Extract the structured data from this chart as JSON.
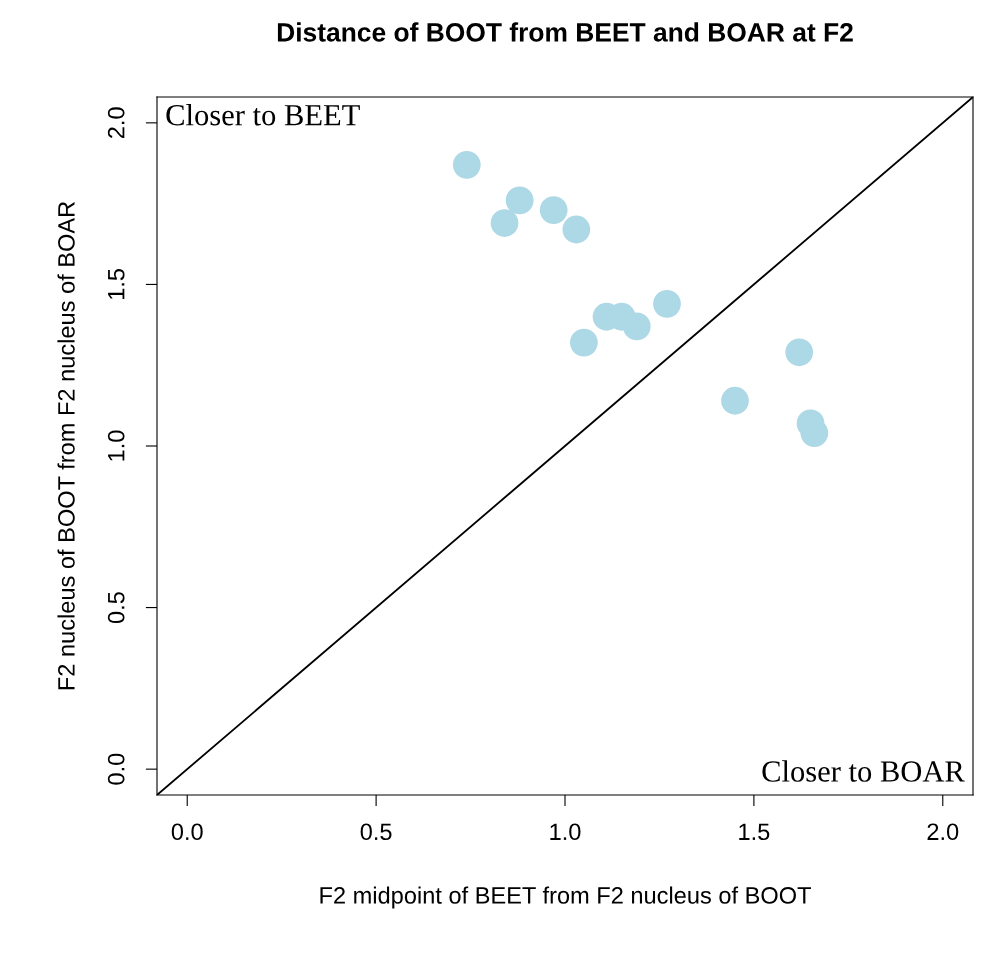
{
  "chart_data": {
    "type": "scatter",
    "title": "Distance of BOOT from BEET and BOAR at F2",
    "xlabel": "F2 midpoint of BEET from F2 nucleus of BOOT",
    "ylabel": "F2 nucleus of BOOT from F2 nucleus of BOAR",
    "annotations": [
      "Closer to BEET",
      "Closer to BOAR"
    ],
    "series": [
      {
        "color": "#add8e6",
        "marker": "circle",
        "x": [
          0.74,
          0.84,
          0.88,
          0.97,
          1.03,
          1.05,
          1.11,
          1.15,
          1.19,
          1.27,
          1.45,
          1.62,
          1.65,
          1.66
        ],
        "values": [
          1.87,
          1.69,
          1.76,
          1.73,
          1.67,
          1.32,
          1.4,
          1.4,
          1.37,
          1.44,
          1.14,
          1.29,
          1.07,
          1.04
        ]
      },
      {
        "type": "line",
        "color": "#000000",
        "x": [
          -0.08,
          2.08
        ],
        "values": [
          -0.08,
          2.08
        ]
      }
    ],
    "xlim": [
      -0.08,
      2.08
    ],
    "ylim": [
      -0.08,
      2.08
    ],
    "xticks": [
      {
        "value": 0,
        "label": "0.0"
      },
      {
        "value": 0.5,
        "label": "0.5"
      },
      {
        "value": 1,
        "label": "1.0"
      },
      {
        "value": 1.5,
        "label": "1.5"
      },
      {
        "value": 2,
        "label": "2.0"
      }
    ],
    "yticks": [
      {
        "value": 0,
        "label": "0.0"
      },
      {
        "value": 0.5,
        "label": "0.5"
      },
      {
        "value": 1,
        "label": "1.0"
      },
      {
        "value": 1.5,
        "label": "1.5"
      },
      {
        "value": 2,
        "label": "2.0"
      }
    ],
    "grid": false,
    "legend": false
  }
}
